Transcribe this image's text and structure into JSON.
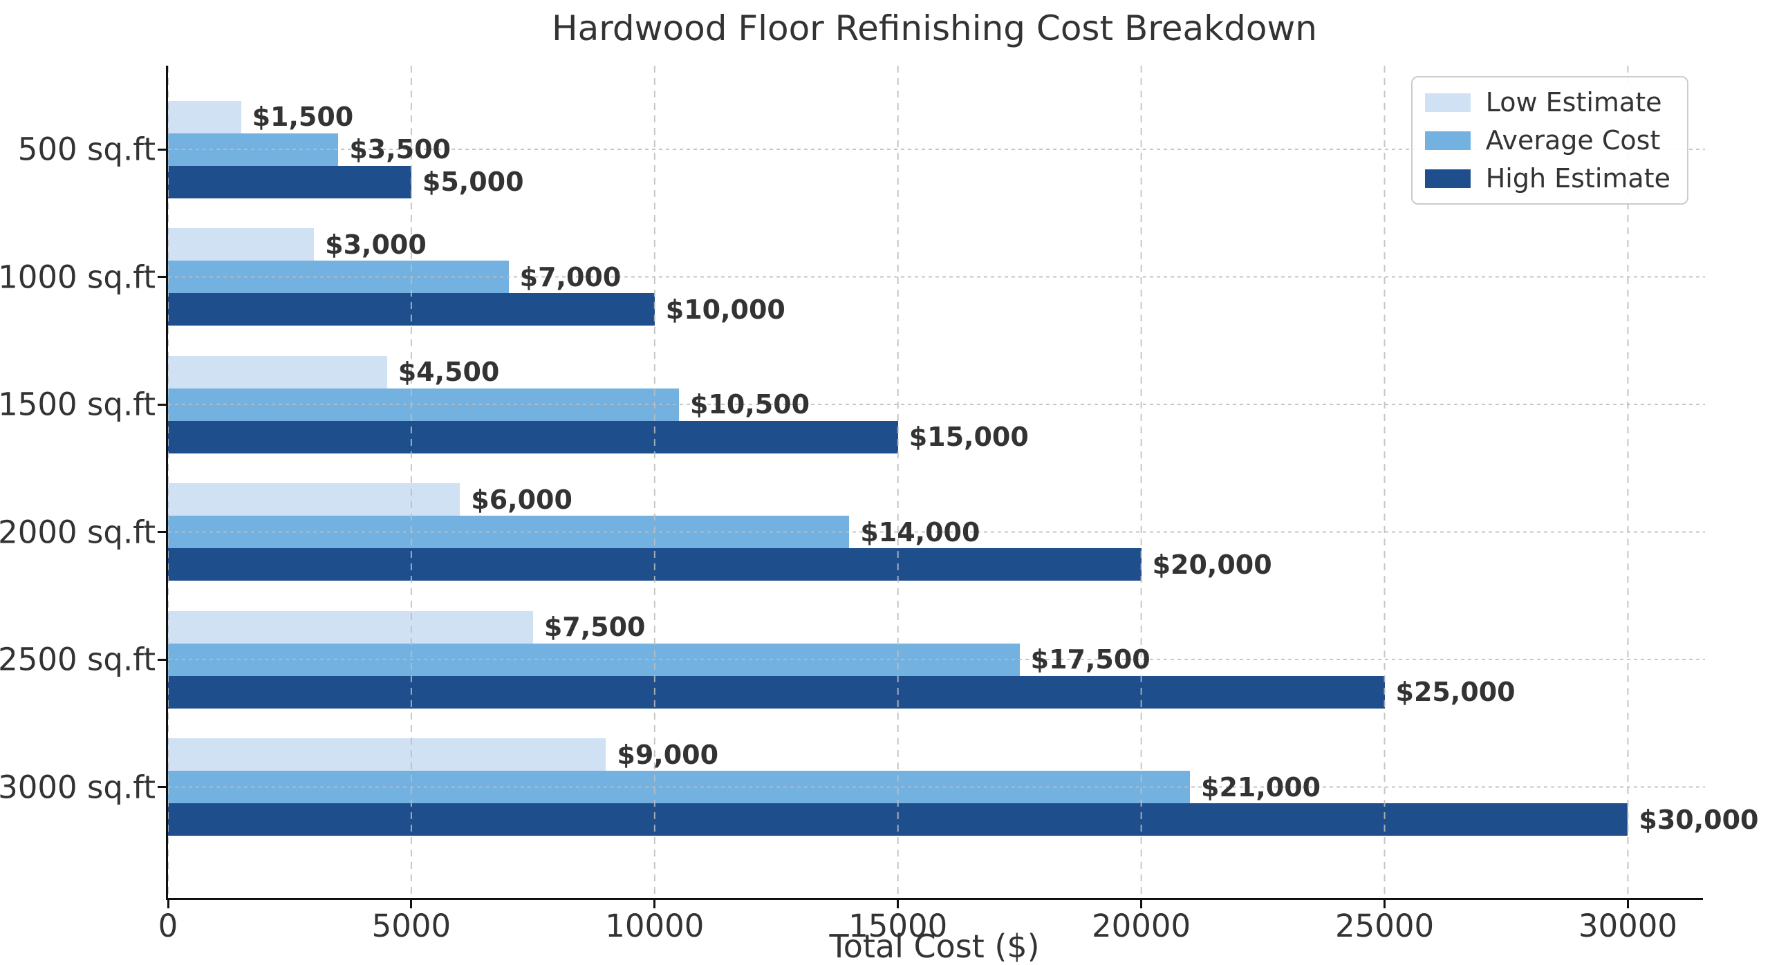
{
  "title": "Hardwood Floor Refinishing Cost Breakdown",
  "chart_data": {
    "type": "bar",
    "orientation": "horizontal",
    "title": "Hardwood Floor Refinishing Cost Breakdown",
    "xlabel": "Total Cost ($)",
    "ylabel": "",
    "categories": [
      "500 sq.ft",
      "1000 sq.ft",
      "1500 sq.ft",
      "2000 sq.ft",
      "2500 sq.ft",
      "3000 sq.ft"
    ],
    "series": [
      {
        "name": "Low Estimate",
        "color": "#cfe1f2",
        "values": [
          1500,
          3000,
          4500,
          6000,
          7500,
          9000
        ],
        "value_labels": [
          "$1,500",
          "$3,000",
          "$4,500",
          "$6,000",
          "$7,500",
          "$9,000"
        ]
      },
      {
        "name": "Average Cost",
        "color": "#73b1e0",
        "values": [
          3500,
          7000,
          10500,
          14000,
          17500,
          21000
        ],
        "value_labels": [
          "$3,500",
          "$7,000",
          "$10,500",
          "$14,000",
          "$17,500",
          "$21,000"
        ]
      },
      {
        "name": "High Estimate",
        "color": "#1f4e8c",
        "values": [
          5000,
          10000,
          15000,
          20000,
          25000,
          30000
        ],
        "value_labels": [
          "$5,000",
          "$10,000",
          "$15,000",
          "$20,000",
          "$25,000",
          "$30,000"
        ]
      }
    ],
    "x_ticks": [
      0,
      5000,
      10000,
      15000,
      20000,
      25000,
      30000
    ],
    "x_tick_labels": [
      "0",
      "5000",
      "10000",
      "15000",
      "20000",
      "25000",
      "30000"
    ],
    "xlim": [
      0,
      31500
    ],
    "grid": {
      "vertical": true,
      "horizontal": true,
      "style": "dashed",
      "drawn_over_bars": true
    },
    "legend": {
      "position": "upper right",
      "entries": [
        "Low Estimate",
        "Average Cost",
        "High Estimate"
      ]
    }
  },
  "colors": {
    "low_estimate": "#cfe1f2",
    "average_cost": "#73b1e0",
    "high_estimate": "#1f4e8c",
    "text": "#333333",
    "spine": "#111111",
    "grid": "#bdbdbd",
    "legend_border": "#cccccc",
    "background": "#ffffff"
  }
}
